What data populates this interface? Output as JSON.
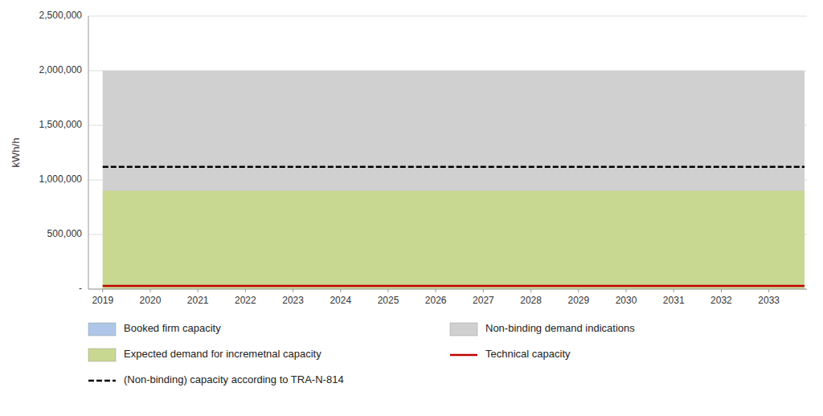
{
  "chart_data": {
    "type": "area",
    "ylabel": "kWh/h",
    "x": [
      2019,
      2020,
      2021,
      2022,
      2023,
      2024,
      2025,
      2026,
      2027,
      2028,
      2029,
      2030,
      2031,
      2032,
      2033,
      2033.75
    ],
    "series": [
      {
        "name": "Booked firm capacity",
        "type": "area",
        "color": "#aec6e8",
        "values": [
          0,
          0,
          0,
          0,
          0,
          0,
          0,
          0,
          0,
          0,
          0,
          0,
          0,
          0,
          0,
          0
        ]
      },
      {
        "name": "Non-binding demand indications",
        "type": "area",
        "color": "#d0d0d0",
        "values": [
          2000000,
          2000000,
          2000000,
          2000000,
          2000000,
          2000000,
          2000000,
          2000000,
          2000000,
          2000000,
          2000000,
          2000000,
          2000000,
          2000000,
          2000000,
          2000000
        ]
      },
      {
        "name": "Expected demand for incremetnal capacity",
        "type": "area",
        "color": "#c8d890",
        "values": [
          900000,
          900000,
          900000,
          900000,
          900000,
          900000,
          900000,
          900000,
          900000,
          900000,
          900000,
          900000,
          900000,
          900000,
          900000,
          900000
        ]
      },
      {
        "name": "Technical capacity",
        "type": "line",
        "color": "#c00000",
        "line_style": "solid",
        "values": [
          30000,
          30000,
          30000,
          30000,
          30000,
          30000,
          30000,
          30000,
          30000,
          30000,
          30000,
          30000,
          30000,
          30000,
          30000,
          30000
        ]
      },
      {
        "name": "(Non-binding) capacity according to TRA-N-814",
        "type": "line",
        "color": "#000000",
        "line_style": "dashed",
        "values": [
          1120000,
          1120000,
          1120000,
          1120000,
          1120000,
          1120000,
          1120000,
          1120000,
          1120000,
          1120000,
          1120000,
          1120000,
          1120000,
          1120000,
          1120000,
          1120000
        ]
      }
    ],
    "xlim": [
      2018.7,
      2033.8
    ],
    "xticks": [
      2019,
      2020,
      2021,
      2022,
      2023,
      2024,
      2025,
      2026,
      2027,
      2028,
      2029,
      2030,
      2031,
      2032,
      2033
    ],
    "ylim": [
      0,
      2500000
    ],
    "yticks": [
      {
        "value": 0,
        "label": "-"
      },
      {
        "value": 500000,
        "label": "500,000"
      },
      {
        "value": 1000000,
        "label": "1,000,000"
      },
      {
        "value": 1500000,
        "label": "1,500,000"
      },
      {
        "value": 2000000,
        "label": "2,000,000"
      },
      {
        "value": 2500000,
        "label": "2,500,000"
      }
    ],
    "grid": true,
    "legend": "bottom"
  }
}
